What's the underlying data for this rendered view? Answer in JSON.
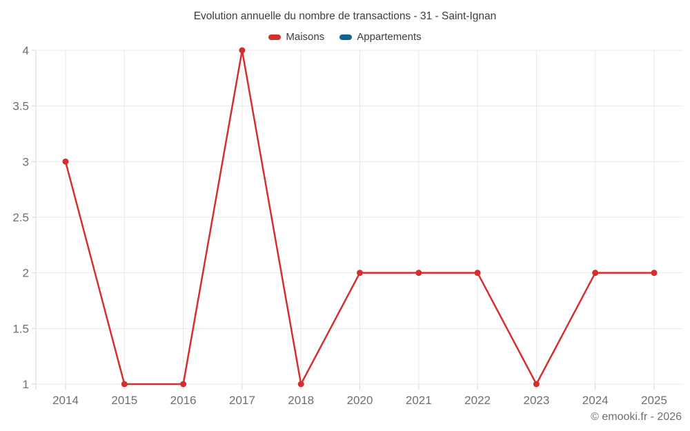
{
  "chart": {
    "title": "Evolution annuelle du nombre de transactions - 31 - Saint-Ignan",
    "legend": [
      {
        "label": "Maisons",
        "color": "#d32f2f"
      },
      {
        "label": "Appartements",
        "color": "#0f6490"
      }
    ]
  },
  "footer": {
    "copyright": "© emooki.fr - 2026"
  },
  "chart_data": {
    "type": "line",
    "title": "Evolution annuelle du nombre de transactions - 31 - Saint-Ignan",
    "categories": [
      "2014",
      "2015",
      "2016",
      "2017",
      "2018",
      "2020",
      "2021",
      "2022",
      "2023",
      "2024",
      "2025"
    ],
    "series": [
      {
        "name": "Maisons",
        "color": "#d32f2f",
        "values": [
          3,
          1,
          1,
          4,
          1,
          2,
          2,
          2,
          1,
          2,
          2
        ]
      },
      {
        "name": "Appartements",
        "color": "#0f6490",
        "values": []
      }
    ],
    "xlabel": "",
    "ylabel": "",
    "ylim": [
      1,
      4
    ],
    "yticks": [
      1,
      1.5,
      2,
      2.5,
      3,
      3.5,
      4
    ],
    "ytick_labels": [
      "1",
      "1.5",
      "2",
      "2.5",
      "3",
      "3.5",
      "4"
    ],
    "grid": true,
    "legend_position": "top",
    "marker": "circle"
  },
  "style": {
    "gridline_color": "#e9e9e9",
    "axis_line_color": "#d6d6d6",
    "tick_label_color": "#6e6e6e",
    "background_color": "#ffffff"
  }
}
